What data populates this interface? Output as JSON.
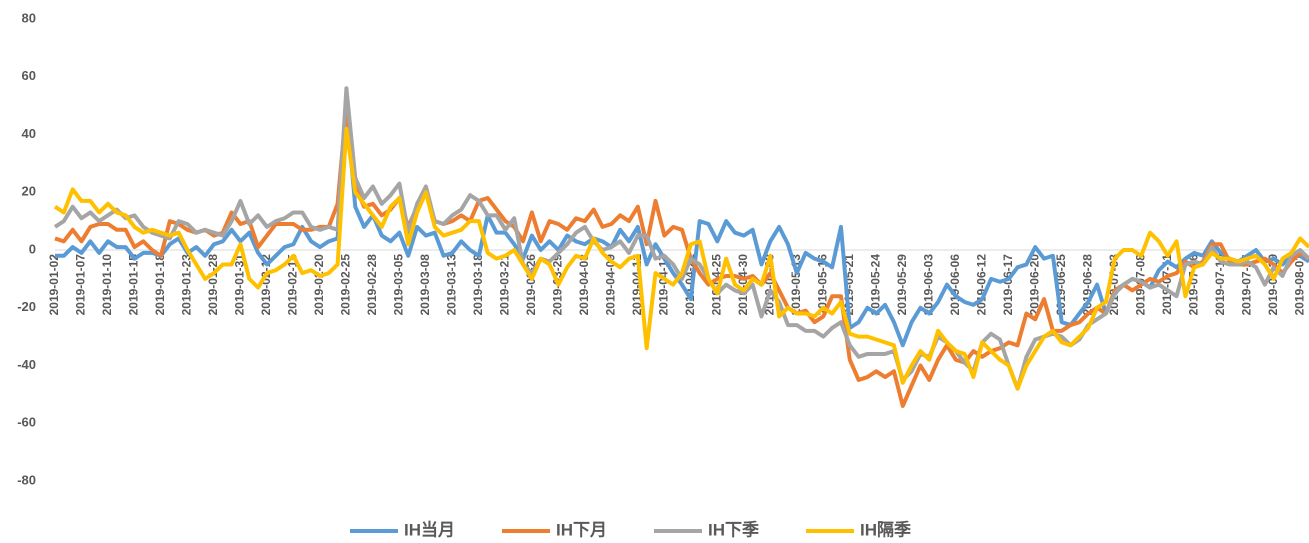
{
  "chart_data": {
    "type": "line",
    "categories": [
      "2019-01-02",
      null,
      null,
      "2019-01-07",
      null,
      null,
      "2019-01-10",
      null,
      null,
      "2019-01-15",
      null,
      null,
      "2019-01-18",
      null,
      null,
      "2019-01-23",
      null,
      null,
      "2019-01-28",
      null,
      null,
      "2019-01-31",
      null,
      null,
      "2019-02-12",
      null,
      null,
      "2019-02-15",
      null,
      null,
      "2019-02-20",
      null,
      null,
      "2019-02-25",
      null,
      null,
      "2019-02-28",
      null,
      null,
      "2019-03-05",
      null,
      null,
      "2019-03-08",
      null,
      null,
      "2019-03-13",
      null,
      null,
      "2019-03-18",
      null,
      null,
      "2019-03-21",
      null,
      null,
      "2019-03-26",
      null,
      null,
      "2019-03-29",
      null,
      null,
      "2019-04-03",
      null,
      null,
      "2019-04-09",
      null,
      null,
      "2019-04-12",
      null,
      null,
      "2019-04-17",
      null,
      null,
      "2019-04-22",
      null,
      null,
      "2019-04-25",
      null,
      null,
      "2019-04-30",
      null,
      null,
      "2019-05-08",
      null,
      null,
      "2019-05-13",
      null,
      null,
      "2019-05-16",
      null,
      null,
      "2019-05-21",
      null,
      null,
      "2019-05-24",
      null,
      null,
      "2019-05-29",
      null,
      null,
      "2019-06-03",
      null,
      null,
      "2019-06-06",
      null,
      null,
      "2019-06-12",
      null,
      null,
      "2019-06-17",
      null,
      null,
      "2019-06-20",
      null,
      null,
      "2019-06-25",
      null,
      null,
      "2019-06-28",
      null,
      null,
      "2019-07-03",
      null,
      null,
      "2019-07-08",
      null,
      null,
      "2019-07-11",
      null,
      null,
      "2019-07-16",
      null,
      null,
      "2019-07-19",
      null,
      null,
      "2019-07-24",
      null,
      null,
      "2019-07-29",
      null,
      null,
      "2019-08-01",
      null
    ],
    "series": [
      {
        "name": "IH当月",
        "color": "#5b9bd5",
        "values": [
          -2,
          -2,
          1,
          -1,
          3,
          -1,
          3,
          1,
          1,
          -3,
          -1,
          -1,
          -2,
          2,
          4,
          -1,
          1,
          -2,
          2,
          3,
          7,
          3,
          6,
          -1,
          -5,
          -2,
          1,
          2,
          8,
          3,
          1,
          3,
          4,
          50,
          15,
          8,
          12,
          5,
          3,
          6,
          -2,
          8,
          5,
          6,
          -2,
          -1,
          3,
          0,
          -2,
          12,
          6,
          6,
          2,
          -3,
          5,
          0,
          3,
          0,
          5,
          3,
          2,
          4,
          3,
          1,
          7,
          3,
          8,
          -5,
          2,
          -3,
          -8,
          -12,
          -17,
          10,
          9,
          3,
          10,
          6,
          5,
          7,
          -5,
          3,
          8,
          2,
          -8,
          -1,
          -3,
          -4,
          -6,
          8,
          -27,
          -25,
          -20,
          -22,
          -19,
          -25,
          -33,
          -25,
          -20,
          -22,
          -18,
          -12,
          -16,
          -18,
          -19,
          -17,
          -10,
          -11,
          -10,
          -6,
          -5,
          1,
          -3,
          -2,
          -25,
          -26,
          -22,
          -18,
          -12,
          -22,
          -15,
          -12,
          -10,
          -11,
          -13,
          -7,
          -4,
          -6,
          -3,
          -1,
          -2,
          3,
          -1,
          -3,
          -4,
          -2,
          0,
          -4,
          -3,
          -5,
          -2,
          -2,
          -4
        ]
      },
      {
        "name": "IH下月",
        "color": "#ed7d31",
        "values": [
          4,
          3,
          7,
          3,
          8,
          9,
          9,
          7,
          7,
          1,
          3,
          0,
          -2,
          10,
          9,
          7,
          6,
          7,
          5,
          6,
          13,
          9,
          10,
          1,
          5,
          9,
          9,
          9,
          7,
          7,
          8,
          8,
          16,
          50,
          22,
          15,
          16,
          12,
          14,
          18,
          8,
          15,
          20,
          10,
          9,
          10,
          12,
          10,
          17,
          18,
          14,
          10,
          8,
          3,
          13,
          3,
          10,
          9,
          7,
          11,
          10,
          14,
          8,
          9,
          12,
          10,
          15,
          2,
          17,
          5,
          8,
          7,
          -3,
          -8,
          -12,
          -10,
          -9,
          -9,
          -10,
          -9,
          -12,
          -8,
          -14,
          -20,
          -22,
          -21,
          -25,
          -23,
          -16,
          -16,
          -38,
          -45,
          -44,
          -42,
          -44,
          -42,
          -54,
          -47,
          -40,
          -45,
          -38,
          -33,
          -38,
          -39,
          -35,
          -37,
          -35,
          -34,
          -32,
          -33,
          -22,
          -24,
          -17,
          -28,
          -28,
          -26,
          -25,
          -22,
          -20,
          -22,
          -14,
          -12,
          -14,
          -12,
          -10,
          -11,
          -9,
          -8,
          -4,
          -6,
          -4,
          2,
          2,
          -4,
          -5,
          -5,
          -4,
          -3,
          -5,
          -8,
          -4,
          -1,
          -3
        ]
      },
      {
        "name": "IH下季",
        "color": "#a5a5a5",
        "values": [
          8,
          10,
          15,
          11,
          13,
          10,
          12,
          14,
          11,
          12,
          8,
          6,
          5,
          4,
          10,
          9,
          6,
          7,
          6,
          5,
          10,
          17,
          9,
          12,
          8,
          10,
          11,
          13,
          13,
          8,
          7,
          8,
          7,
          56,
          25,
          18,
          22,
          16,
          19,
          23,
          6,
          16,
          22,
          10,
          9,
          12,
          14,
          19,
          17,
          12,
          12,
          7,
          11,
          -5,
          -8,
          -3,
          -4,
          -1,
          2,
          6,
          8,
          3,
          0,
          1,
          3,
          -1,
          5,
          5,
          -3,
          -2,
          -5,
          -10,
          -3,
          -5,
          -10,
          -15,
          -12,
          -14,
          -15,
          -12,
          -23,
          -14,
          -18,
          -26,
          -26,
          -28,
          -28,
          -30,
          -27,
          -25,
          -33,
          -37,
          -36,
          -36,
          -36,
          -35,
          -45,
          -42,
          -36,
          -37,
          -30,
          -32,
          -35,
          -39,
          -42,
          -32,
          -29,
          -31,
          -40,
          -48,
          -37,
          -31,
          -30,
          -29,
          -30,
          -33,
          -31,
          -26,
          -24,
          -22,
          -15,
          -12,
          -10,
          -11,
          -13,
          -12,
          -14,
          -16,
          -5,
          -4,
          -5,
          1,
          -4,
          -5,
          -5,
          -4,
          -6,
          -12,
          -6,
          -9,
          -2,
          0,
          -3
        ]
      },
      {
        "name": "IH隔季",
        "color": "#ffc000",
        "values": [
          15,
          13,
          21,
          17,
          17,
          13,
          16,
          13,
          12,
          8,
          6,
          7,
          6,
          5,
          6,
          0,
          -5,
          -10,
          -8,
          -5,
          -5,
          2,
          -10,
          -13,
          -8,
          -7,
          -5,
          -2,
          -8,
          -7,
          -9,
          -8,
          -5,
          42,
          20,
          16,
          12,
          8,
          15,
          18,
          2,
          13,
          20,
          8,
          5,
          6,
          7,
          10,
          10,
          -1,
          -3,
          -2,
          0,
          -5,
          -10,
          -3,
          -5,
          -12,
          -6,
          -2,
          -3,
          4,
          -1,
          -4,
          -6,
          -3,
          -2,
          -34,
          -8,
          -10,
          -12,
          -8,
          2,
          3,
          -10,
          -15,
          -3,
          -12,
          -14,
          -10,
          -12,
          -2,
          -23,
          -20,
          -22,
          -22,
          -23,
          -20,
          -22,
          -18,
          -29,
          -30,
          -30,
          -31,
          -32,
          -33,
          -46,
          -40,
          -35,
          -38,
          -28,
          -32,
          -35,
          -36,
          -44,
          -32,
          -35,
          -38,
          -40,
          -48,
          -40,
          -35,
          -30,
          -28,
          -32,
          -33,
          -30,
          -27,
          -20,
          -18,
          -3,
          0,
          0,
          -2,
          6,
          3,
          -2,
          3,
          -16,
          -6,
          -5,
          -1,
          -3,
          -3,
          -4,
          -3,
          -2,
          -5,
          -10,
          -3,
          -1,
          4,
          1
        ]
      }
    ],
    "ylim": [
      -80,
      80
    ],
    "yticks": [
      -80,
      -60,
      -40,
      -20,
      0,
      20,
      40,
      60,
      80
    ],
    "grid": false,
    "legend": "bottom"
  }
}
